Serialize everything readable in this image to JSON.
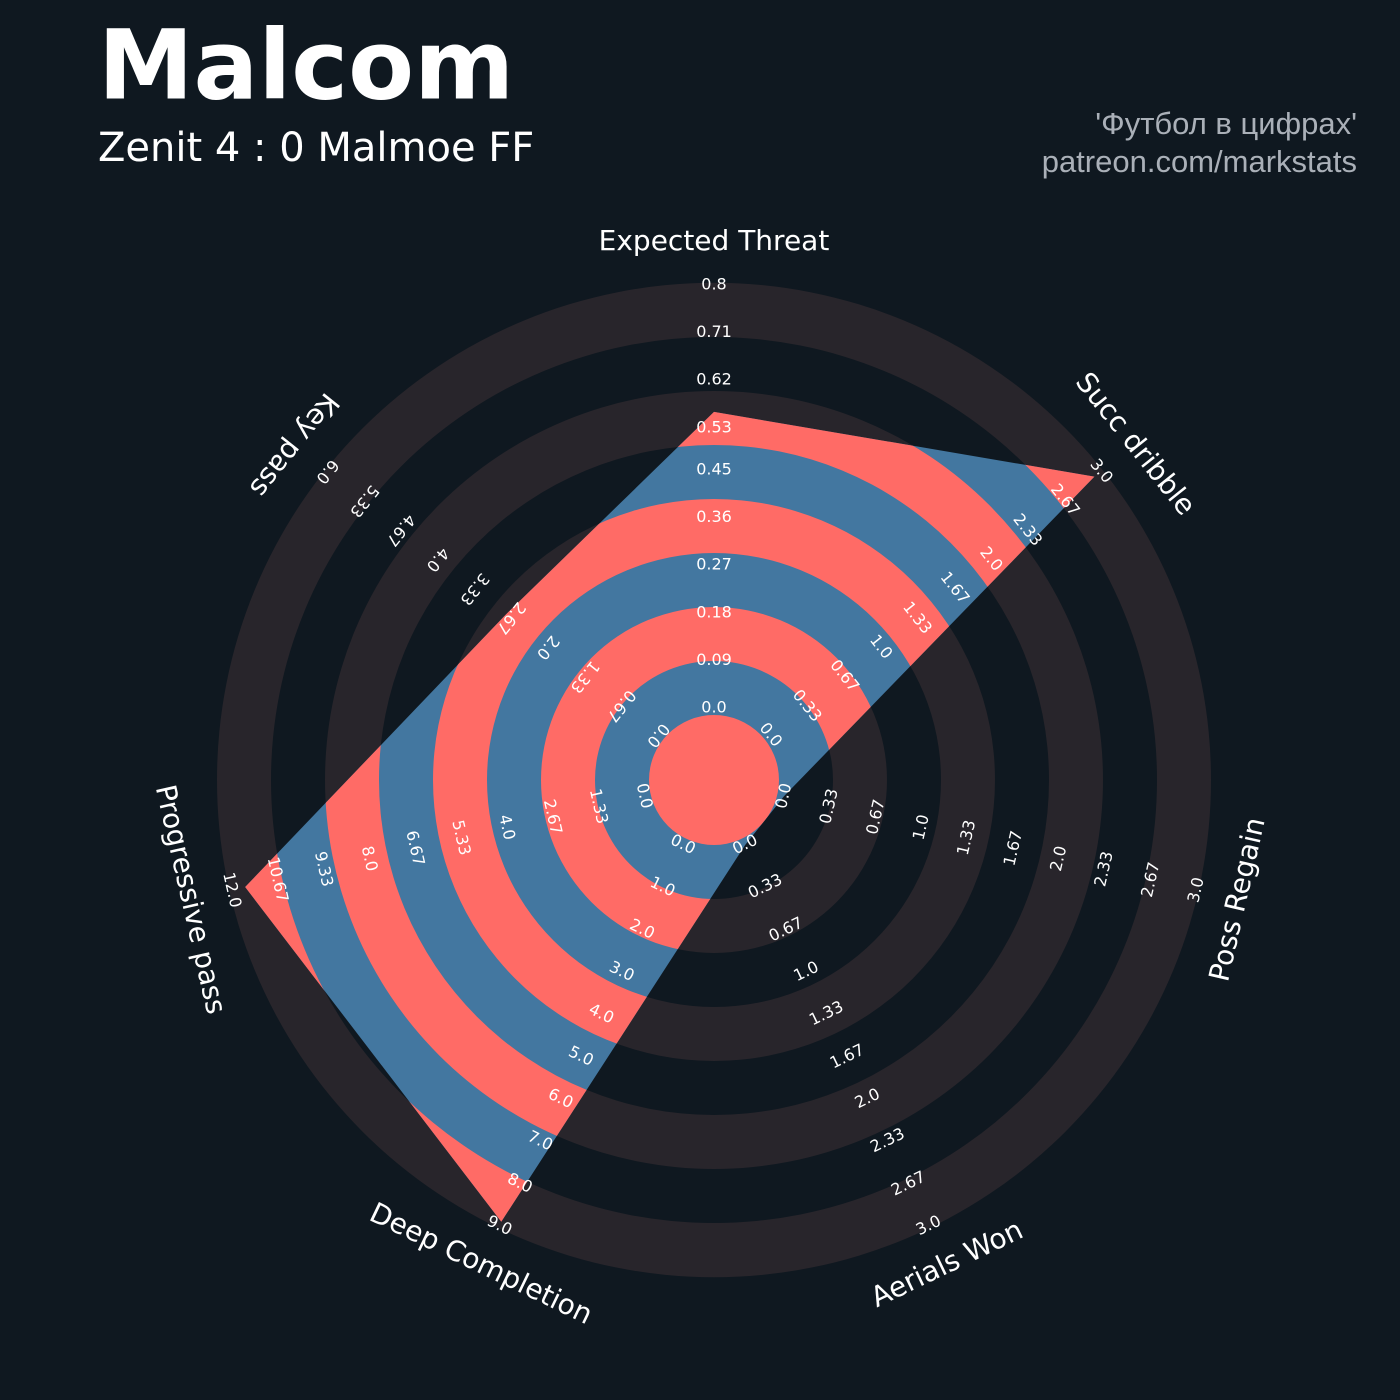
{
  "chart_data": {
    "type": "radar",
    "title": "Malcom",
    "subtitle": "Zenit 4 : 0 Malmoe FF",
    "credits": [
      "'Футбол в цифрах'",
      "patreon.com/markstats"
    ],
    "categories": [
      "Expected Threat",
      "Succ dribble",
      "Poss Regain",
      "Aerials Won",
      "Deep Completion",
      "Progressive pass",
      "Key pass"
    ],
    "values": [
      0.56,
      2.94,
      0,
      0,
      8.9,
      11.6,
      2.75
    ],
    "color": "#4377a0",
    "highlight_color": "#ff6b66",
    "ring_color": "#28252b",
    "ranges": [
      [
        0,
        0.8
      ],
      [
        0,
        3
      ],
      [
        0,
        3
      ],
      [
        0,
        3
      ],
      [
        0,
        9
      ],
      [
        0,
        12
      ],
      [
        0,
        6
      ]
    ],
    "ticks": [
      [
        {
          "value": 0,
          "label": "0.0"
        },
        0.09,
        0.18,
        0.27,
        0.36,
        0.45,
        0.53,
        0.62,
        0.71,
        0.8
      ],
      [
        {
          "value": 0,
          "label": "0.0"
        },
        0.33,
        0.67,
        {
          "value": 1,
          "label": "1.0"
        },
        1.33,
        1.67,
        {
          "value": 2,
          "label": "2.0"
        },
        2.33,
        2.67,
        {
          "value": 3,
          "label": "3.0"
        }
      ],
      [
        {
          "value": 0,
          "label": "0.0"
        },
        0.33,
        0.67,
        {
          "value": 1,
          "label": "1.0"
        },
        1.33,
        1.67,
        {
          "value": 2,
          "label": "2.0"
        },
        2.33,
        2.67,
        {
          "value": 3,
          "label": "3.0"
        }
      ],
      [
        {
          "value": 0,
          "label": "0.0"
        },
        0.33,
        0.67,
        {
          "value": 1,
          "label": "1.0"
        },
        1.33,
        1.67,
        {
          "value": 2,
          "label": "2.0"
        },
        2.33,
        2.67,
        {
          "value": 3,
          "label": "3.0"
        }
      ],
      [
        {
          "value": 0,
          "label": "0.0"
        },
        {
          "value": 1,
          "label": "1.0"
        },
        {
          "value": 2,
          "label": "2.0"
        },
        {
          "value": 3,
          "label": "3.0"
        },
        {
          "value": 4,
          "label": "4.0"
        },
        {
          "value": 5,
          "label": "5.0"
        },
        {
          "value": 6,
          "label": "6.0"
        },
        {
          "value": 7,
          "label": "7.0"
        },
        {
          "value": 8,
          "label": "8.0"
        },
        {
          "value": 9,
          "label": "9.0"
        }
      ],
      [
        {
          "value": 0,
          "label": "0.0"
        },
        1.33,
        2.67,
        {
          "value": 4,
          "label": "4.0"
        },
        5.33,
        6.67,
        {
          "value": 8,
          "label": "8.0"
        },
        9.33,
        10.67,
        {
          "value": 12,
          "label": "12.0"
        }
      ],
      [
        {
          "value": 0,
          "label": "0.0"
        },
        0.67,
        1.33,
        {
          "value": 2,
          "label": "2.0"
        },
        2.67,
        3.33,
        {
          "value": 4,
          "label": "4.0"
        },
        4.67,
        5.33,
        {
          "value": 6,
          "label": "6.0"
        }
      ]
    ]
  }
}
